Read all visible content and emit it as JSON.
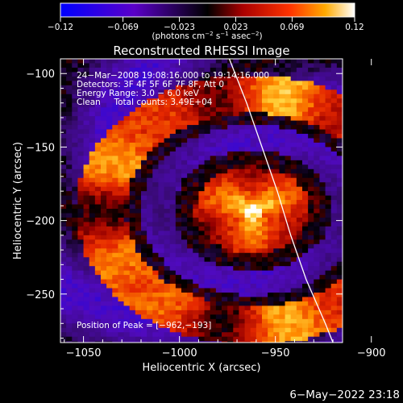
{
  "chart_data": {
    "type": "heatmap",
    "title": "Reconstructed RHESSI Image",
    "xlabel": "Heliocentric X (arcsec)",
    "ylabel": "Heliocentric Y (arcsec)",
    "xlim": [
      -1062,
      -915
    ],
    "ylim": [
      -283,
      -90
    ],
    "x_ticks": [
      "−1050",
      "−1000",
      "−950",
      "−900"
    ],
    "x_tick_values": [
      -1050,
      -1000,
      -950,
      -900
    ],
    "y_ticks": [
      "−100",
      "−150",
      "−200",
      "−250"
    ],
    "y_tick_values": [
      -100,
      -150,
      -200,
      -250
    ],
    "colorbar": {
      "ticks": [
        "−0.12",
        "−0.069",
        "−0.023",
        "0.023",
        "0.069",
        "0.12"
      ],
      "tick_values": [
        -0.12,
        -0.069,
        -0.023,
        0.023,
        0.069,
        0.12
      ],
      "range": [
        -0.12,
        0.12
      ],
      "unit_parts": [
        "(photons cm",
        "−2",
        " s",
        "−1",
        " asec",
        "−2",
        ")"
      ]
    },
    "annotations": [
      "24−Mar−2008 19:08:16.000 to 19:14:16.000",
      "Detectors: 3F 4F 5F 6F 7F 8F, Att 0",
      "Energy Range: 3.0 − 6.0 keV",
      "Clean     Total counts: 3.49E+04"
    ],
    "peak_label": "Position of Peak = [−962,−193]",
    "peak": [
      -962,
      -193
    ],
    "limb_curve": [
      [
        -974,
        -90
      ],
      [
        -965,
        -120
      ],
      [
        -957,
        -150
      ],
      [
        -949,
        -180
      ],
      [
        -942,
        -210
      ],
      [
        -934,
        -240
      ],
      [
        -924,
        -270
      ],
      [
        -920,
        -283
      ]
    ],
    "features": {
      "core": {
        "center": [
          -962,
          -193
        ],
        "peak_value": 0.12
      },
      "inner_ring_radius": 38,
      "outer_ring_radius": 80
    },
    "colors": {
      "background": "#000000",
      "text": "#ffffff",
      "limb": "#ffffff"
    }
  },
  "footer": {
    "timestamp": "6−May−2022 23:18"
  }
}
